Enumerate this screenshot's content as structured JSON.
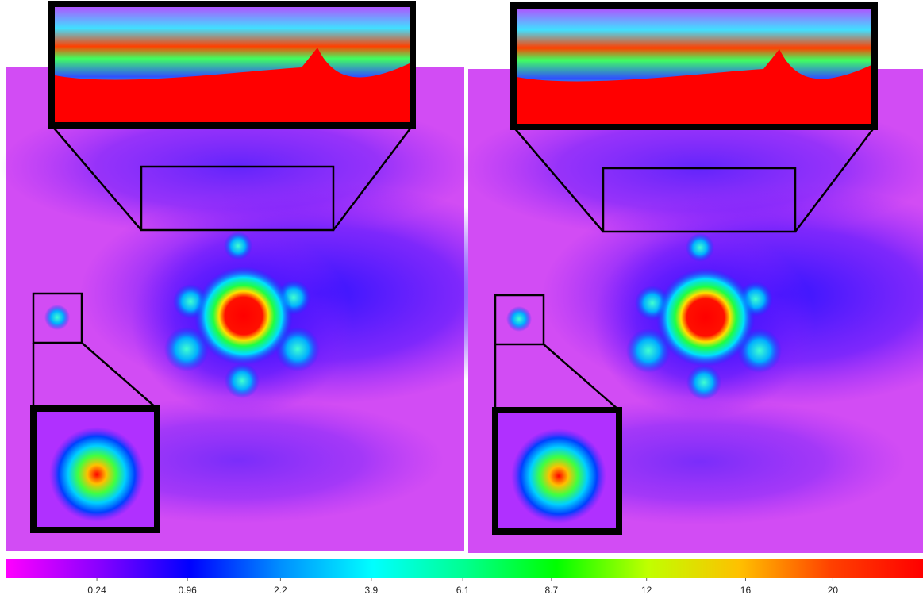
{
  "chart_data": {
    "type": "heatmap",
    "colorbar": {
      "scale": "sqrt",
      "lim": [
        0,
        24.6
      ],
      "ticks": [
        0.24,
        0.96,
        2.2,
        3.9,
        6.1,
        8.7,
        12,
        16,
        20
      ],
      "colors": [
        "#ff00ff",
        "#8a00ff",
        "#0000ff",
        "#0090ff",
        "#00ffff",
        "#00ff90",
        "#00ff00",
        "#c0ff00",
        "#ffc000",
        "#ff4000",
        "#ff0000"
      ]
    }
  }
}
